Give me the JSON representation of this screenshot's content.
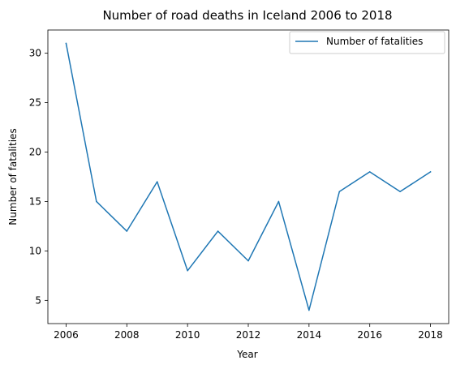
{
  "chart_data": {
    "type": "line",
    "title": "Number of road deaths in Iceland 2006 to 2018",
    "xlabel": "Year",
    "ylabel": "Number of fatalities",
    "x": [
      2006,
      2007,
      2008,
      2009,
      2010,
      2011,
      2012,
      2013,
      2014,
      2015,
      2016,
      2017,
      2018
    ],
    "series": [
      {
        "name": "Number of fatalities",
        "values": [
          31,
          15,
          12,
          17,
          8,
          12,
          9,
          15,
          4,
          16,
          18,
          16,
          18
        ],
        "color": "#1f77b4"
      }
    ],
    "xlim": [
      2005.4,
      2018.6
    ],
    "ylim": [
      2.65,
      32.35
    ],
    "xticks": [
      2006,
      2008,
      2010,
      2012,
      2014,
      2016,
      2018
    ],
    "yticks": [
      5,
      10,
      15,
      20,
      25,
      30
    ],
    "grid": false,
    "legend": "top-right"
  }
}
